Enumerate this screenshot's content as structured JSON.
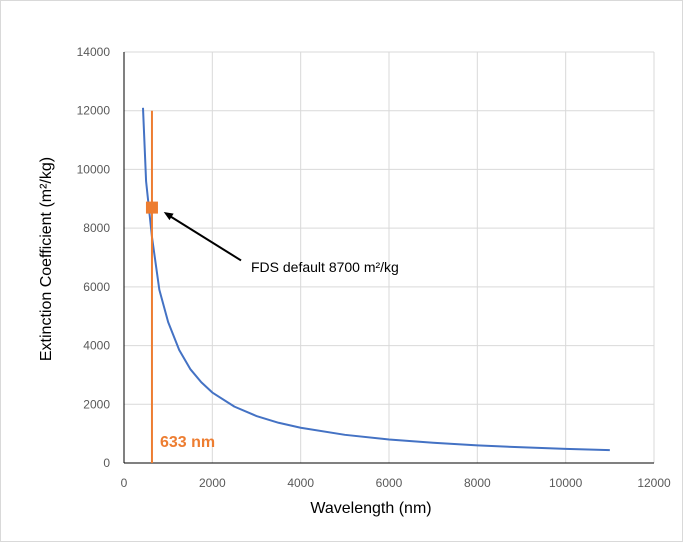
{
  "chart_data": {
    "type": "line",
    "xlabel": "Wavelength (nm)",
    "ylabel": "Extinction Coefficient (m²/kg)",
    "xlim": [
      0,
      12000
    ],
    "ylim": [
      0,
      14000
    ],
    "xticks": [
      0,
      2000,
      4000,
      6000,
      8000,
      10000,
      12000
    ],
    "yticks": [
      0,
      2000,
      4000,
      6000,
      8000,
      10000,
      12000,
      14000
    ],
    "grid": true,
    "series": [
      {
        "color": "#4472C4",
        "x": [
          430,
          500,
          633,
          800,
          1000,
          1250,
          1500,
          1750,
          2000,
          2500,
          3000,
          3500,
          4000,
          5000,
          6000,
          7000,
          8000,
          9000,
          10000,
          11000
        ],
        "y": [
          12100,
          9600,
          7700,
          5900,
          4800,
          3850,
          3200,
          2750,
          2400,
          1920,
          1600,
          1370,
          1200,
          960,
          800,
          690,
          600,
          535,
          480,
          440
        ]
      }
    ],
    "vertical_line": {
      "x": 633,
      "y_range": [
        0,
        12000
      ],
      "color": "#ED7D31",
      "label": "633 nm"
    },
    "marker": {
      "x": 633,
      "y": 8700,
      "color": "#ED7D31",
      "shape": "square"
    },
    "annotation": {
      "text": "FDS default 8700 m²/kg",
      "arrow_from": [
        2650,
        6900
      ],
      "arrow_to": [
        900,
        8550
      ]
    }
  }
}
